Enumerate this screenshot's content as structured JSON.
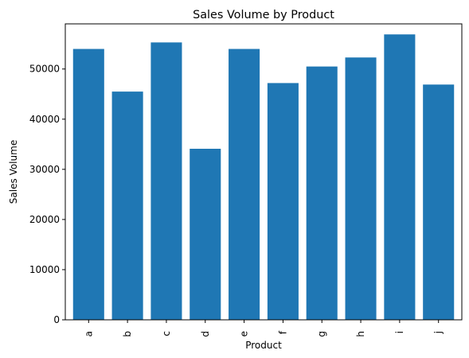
{
  "chart_data": {
    "type": "bar",
    "title": "Sales Volume by Product",
    "xlabel": "Product",
    "ylabel": "Sales Volume",
    "categories": [
      "a",
      "b",
      "c",
      "d",
      "e",
      "f",
      "g",
      "h",
      "i",
      "j"
    ],
    "values": [
      54000,
      45500,
      55300,
      34100,
      54000,
      47200,
      50500,
      52300,
      56900,
      46900
    ],
    "ylim": [
      0,
      59000
    ],
    "yticks": [
      0,
      10000,
      20000,
      30000,
      40000,
      50000
    ],
    "bar_color": "#1f77b4",
    "grid": false,
    "legend": "none"
  }
}
